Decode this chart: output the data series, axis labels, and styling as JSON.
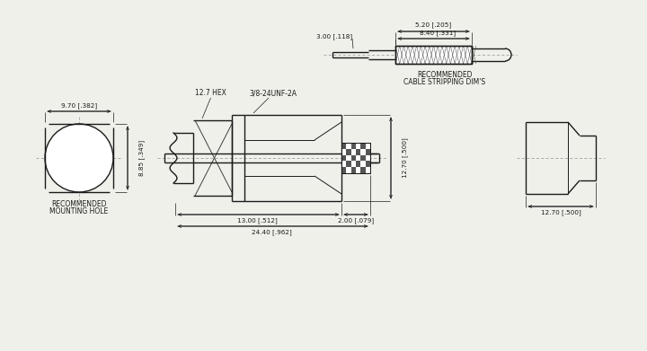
{
  "bg_color": "#f0f0eb",
  "line_color": "#1a1a1a",
  "dim_color": "#1a1a1a",
  "annotations": {
    "cable_title1": "RECOMMENDED",
    "cable_title2": "CABLE STRIPPING DIM'S",
    "mount_title1": "RECOMMENDED",
    "mount_title2": "MOUNTING HOLE",
    "hex_label": "12.7 HEX",
    "thread_label": "3/8-24UNF-2A",
    "dim_520": "5.20 [.205]",
    "dim_840": "8.40 [.331]",
    "dim_300": "3.00 [.118]",
    "dim_970": "9.70 [.382]",
    "dim_885": "8.85 [.349]",
    "dim_1300": "13.00 [.512]",
    "dim_200": "2.00 [.079]",
    "dim_2440": "24.40 [.962]",
    "dim_1270a": "12.70 [.500]",
    "dim_1270b": "12.70 [.500]"
  }
}
